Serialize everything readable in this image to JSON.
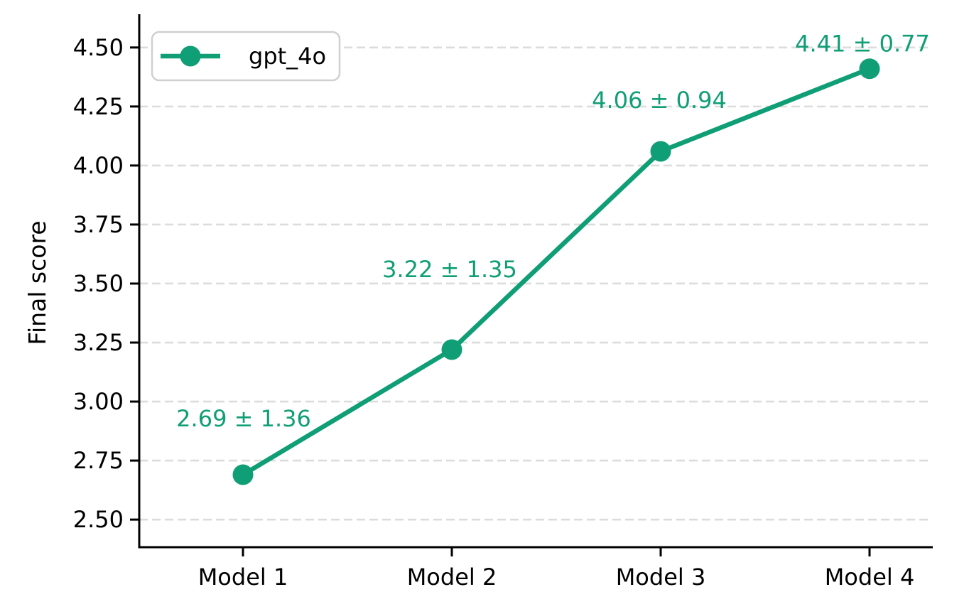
{
  "chart_data": {
    "type": "line",
    "title": "",
    "xlabel": "",
    "ylabel": "Final score",
    "categories": [
      "Model 1",
      "Model 2",
      "Model 3",
      "Model 4"
    ],
    "series": [
      {
        "name": "gpt_4o",
        "values": [
          2.69,
          3.22,
          4.06,
          4.41
        ],
        "errors": [
          1.36,
          1.35,
          0.94,
          0.77
        ],
        "color": "#0f9e75"
      }
    ],
    "point_labels": [
      "2.69 ± 1.36",
      "3.22 ± 1.35",
      "4.06 ± 0.94",
      "4.41 ± 0.77"
    ],
    "ylim": [
      2.383,
      4.641
    ],
    "yticks": [
      2.5,
      2.75,
      3.0,
      3.25,
      3.5,
      3.75,
      4.0,
      4.25,
      4.5
    ],
    "ytick_labels": [
      "2.50",
      "2.75",
      "3.00",
      "3.25",
      "3.50",
      "3.75",
      "4.00",
      "4.25",
      "4.50"
    ],
    "grid": "horizontal-dashed",
    "legend": {
      "position": "upper-left",
      "entries": [
        "gpt_4o"
      ]
    },
    "colors": {
      "line": "#0f9e75",
      "annotation": "#0f9e75",
      "grid": "#dcdcdc",
      "axis": "#000000",
      "background": "#ffffff",
      "legend_border": "#d0d0d0"
    }
  }
}
